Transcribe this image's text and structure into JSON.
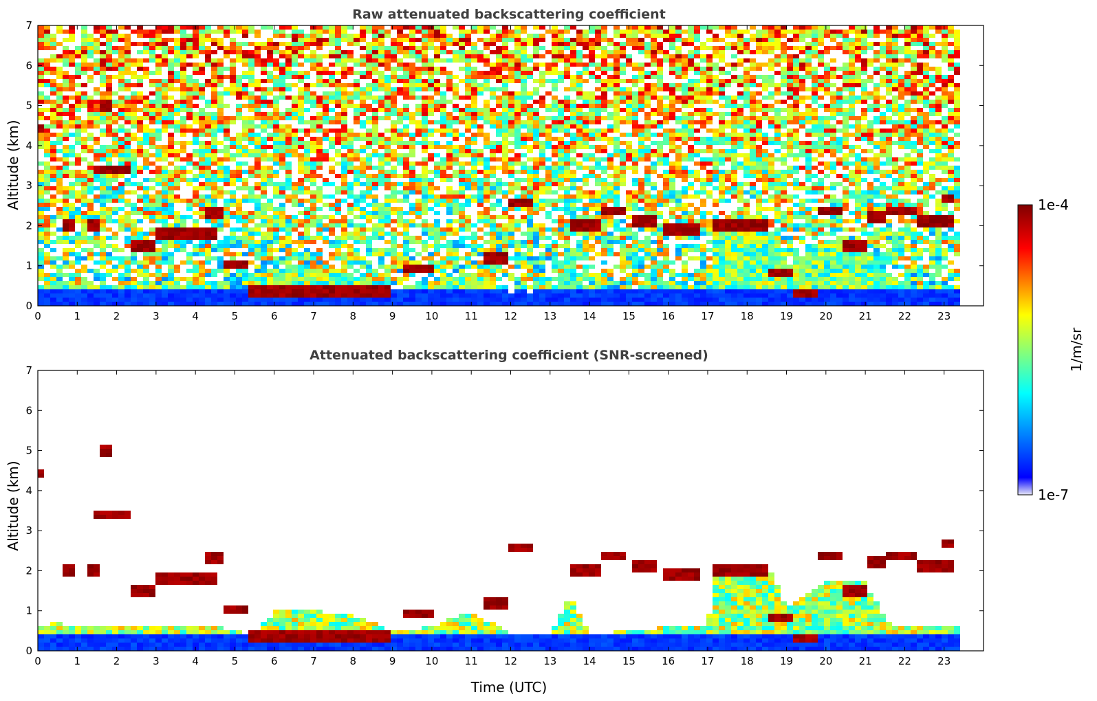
{
  "chart_data": [
    {
      "type": "heatmap",
      "title": "Raw attenuated backscattering coefficient",
      "xlabel": "",
      "ylabel": "Altitude (km)",
      "xlim": [
        0,
        24
      ],
      "ylim": [
        0,
        7
      ],
      "xticks": [
        "0",
        "1",
        "2",
        "3",
        "4",
        "5",
        "6",
        "7",
        "8",
        "9",
        "10",
        "11",
        "12",
        "13",
        "14",
        "15",
        "16",
        "17",
        "18",
        "19",
        "20",
        "21",
        "22",
        "23"
      ],
      "yticks": [
        "0",
        "1",
        "2",
        "3",
        "4",
        "5",
        "6",
        "7"
      ],
      "data_end_time": 23.3,
      "screened": false,
      "boundary_layer_top_km": [
        [
          0,
          0.5
        ],
        [
          0.5,
          0.6
        ],
        [
          1,
          0.5
        ],
        [
          2,
          0.5
        ],
        [
          3,
          0.5
        ],
        [
          4,
          0.5
        ],
        [
          4.5,
          0.5
        ],
        [
          5,
          0.4
        ],
        [
          5.5,
          0.3
        ],
        [
          6,
          0.9
        ],
        [
          7,
          0.9
        ],
        [
          8,
          0.8
        ],
        [
          9,
          0.4
        ],
        [
          10,
          0.5
        ],
        [
          11,
          0.9
        ],
        [
          12,
          0.3
        ],
        [
          13,
          0.3
        ],
        [
          13.5,
          1.3
        ],
        [
          14,
          0.3
        ],
        [
          15,
          0.4
        ],
        [
          16,
          0.5
        ],
        [
          17,
          0.5
        ],
        [
          17.2,
          1.8
        ],
        [
          18.6,
          1.9
        ],
        [
          19,
          1.0
        ],
        [
          20,
          1.6
        ],
        [
          21,
          1.6
        ],
        [
          21.6,
          0.6
        ],
        [
          22,
          0.5
        ],
        [
          23,
          0.5
        ],
        [
          23.3,
          0.5
        ]
      ],
      "cloud_layers": [
        {
          "t0": 0.0,
          "t1": 0.15,
          "alt_km": 4.4
        },
        {
          "t0": 0.6,
          "t1": 1.0,
          "alt_km": 2.0
        },
        {
          "t0": 1.2,
          "t1": 1.5,
          "alt_km": 2.0
        },
        {
          "t0": 1.6,
          "t1": 1.9,
          "alt_km": 5.0
        },
        {
          "t0": 1.4,
          "t1": 2.3,
          "alt_km": 3.4
        },
        {
          "t0": 2.3,
          "t1": 3.0,
          "alt_km": 1.5
        },
        {
          "t0": 3.0,
          "t1": 4.5,
          "alt_km": 1.8
        },
        {
          "t0": 4.2,
          "t1": 4.7,
          "alt_km": 2.3
        },
        {
          "t0": 4.7,
          "t1": 5.4,
          "alt_km": 1.0
        },
        {
          "t0": 5.4,
          "t1": 9.0,
          "alt_km": 0.35
        },
        {
          "t0": 9.3,
          "t1": 10.0,
          "alt_km": 0.95
        },
        {
          "t0": 11.3,
          "t1": 11.9,
          "alt_km": 1.2
        },
        {
          "t0": 11.9,
          "t1": 12.6,
          "alt_km": 2.6
        },
        {
          "t0": 13.5,
          "t1": 14.3,
          "alt_km": 2.0
        },
        {
          "t0": 14.3,
          "t1": 15.0,
          "alt_km": 2.4
        },
        {
          "t0": 15.1,
          "t1": 15.7,
          "alt_km": 2.1
        },
        {
          "t0": 15.9,
          "t1": 16.8,
          "alt_km": 1.9
        },
        {
          "t0": 17.2,
          "t1": 18.6,
          "alt_km": 2.0
        },
        {
          "t0": 18.6,
          "t1": 19.2,
          "alt_km": 0.8
        },
        {
          "t0": 19.2,
          "t1": 19.8,
          "alt_km": 0.3
        },
        {
          "t0": 19.8,
          "t1": 20.4,
          "alt_km": 2.4
        },
        {
          "t0": 20.5,
          "t1": 21.0,
          "alt_km": 1.5
        },
        {
          "t0": 21.0,
          "t1": 21.5,
          "alt_km": 2.2
        },
        {
          "t0": 21.5,
          "t1": 22.3,
          "alt_km": 2.4
        },
        {
          "t0": 22.3,
          "t1": 23.2,
          "alt_km": 2.1
        },
        {
          "t0": 23.0,
          "t1": 23.3,
          "alt_km": 2.7
        }
      ]
    },
    {
      "type": "heatmap",
      "title": "Attenuated backscattering coefficient (SNR-screened)",
      "xlabel": "Time (UTC)",
      "ylabel": "Altitude (km)",
      "xlim": [
        0,
        24
      ],
      "ylim": [
        0,
        7
      ],
      "xticks": [
        "0",
        "1",
        "2",
        "3",
        "4",
        "5",
        "6",
        "7",
        "8",
        "9",
        "10",
        "11",
        "12",
        "13",
        "14",
        "15",
        "16",
        "17",
        "18",
        "19",
        "20",
        "21",
        "22",
        "23"
      ],
      "yticks": [
        "0",
        "1",
        "2",
        "3",
        "4",
        "5",
        "6",
        "7"
      ],
      "data_end_time": 23.3,
      "screened": true
    }
  ],
  "colorbar": {
    "label": "1/m/sr",
    "max_label": "1e-4",
    "min_label": "1e-7",
    "scale": "log",
    "colormap": "jet",
    "colors": [
      "#e6e6f5",
      "#0000ff",
      "#00ffff",
      "#ffff00",
      "#ff0000",
      "#800000"
    ]
  }
}
